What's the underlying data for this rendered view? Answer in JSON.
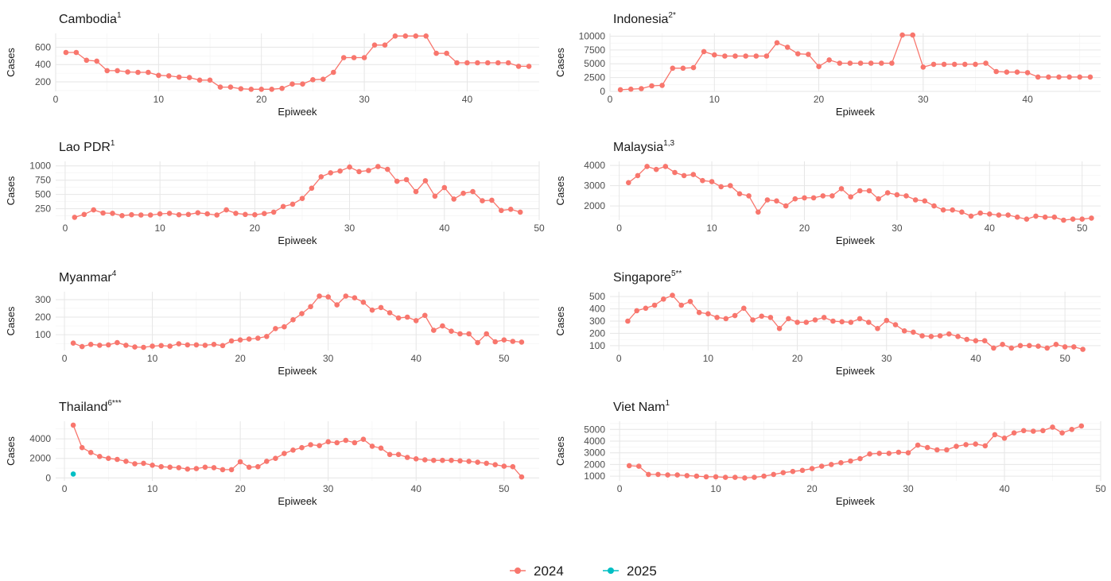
{
  "legend": {
    "items": [
      {
        "label": "2024",
        "color": "#F8766D"
      },
      {
        "label": "2025",
        "color": "#00BFC4"
      }
    ],
    "placement": "bottom"
  },
  "chart_data": [
    {
      "type": "line",
      "title": "Cambodia",
      "title_sup": "1",
      "xlabel": "Epiweek",
      "ylabel": "Cases",
      "xlim": [
        0,
        47
      ],
      "ylim": [
        90,
        760
      ],
      "xticks": [
        0,
        10,
        20,
        30,
        40
      ],
      "yticks": [
        200,
        400,
        600
      ],
      "grid": true,
      "series": [
        {
          "name": "2024",
          "color": "#F8766D",
          "x": [
            1,
            2,
            3,
            4,
            5,
            6,
            7,
            8,
            9,
            10,
            11,
            12,
            13,
            14,
            15,
            16,
            17,
            18,
            19,
            20,
            21,
            22,
            23,
            24,
            25,
            26,
            27,
            28,
            29,
            30,
            31,
            32,
            33,
            34,
            35,
            36,
            37,
            38,
            39,
            40,
            41,
            42,
            43,
            44,
            45,
            46
          ],
          "y": [
            540,
            540,
            450,
            440,
            330,
            330,
            315,
            310,
            310,
            275,
            270,
            255,
            250,
            220,
            220,
            140,
            140,
            120,
            115,
            115,
            115,
            125,
            175,
            175,
            225,
            230,
            310,
            480,
            480,
            480,
            625,
            625,
            730,
            730,
            730,
            730,
            530,
            530,
            420,
            420,
            420,
            420,
            420,
            420,
            380,
            380
          ]
        }
      ]
    },
    {
      "type": "line",
      "title": "Indonesia",
      "title_sup": "2*",
      "xlabel": "Epiweek",
      "ylabel": "Cases",
      "xlim": [
        0,
        47
      ],
      "ylim": [
        0,
        10500
      ],
      "xticks": [
        0,
        10,
        20,
        30,
        40
      ],
      "yticks": [
        0,
        2500,
        5000,
        7500,
        10000
      ],
      "grid": true,
      "series": [
        {
          "name": "2024",
          "color": "#F8766D",
          "x": [
            1,
            2,
            3,
            4,
            5,
            6,
            7,
            8,
            9,
            10,
            11,
            12,
            13,
            14,
            15,
            16,
            17,
            18,
            19,
            20,
            21,
            22,
            23,
            24,
            25,
            26,
            27,
            28,
            29,
            30,
            31,
            32,
            33,
            34,
            35,
            36,
            37,
            38,
            39,
            40,
            41,
            42,
            43,
            44,
            45,
            46
          ],
          "y": [
            300,
            400,
            500,
            1000,
            1100,
            4200,
            4200,
            4300,
            7200,
            6600,
            6400,
            6400,
            6400,
            6400,
            6400,
            8800,
            8000,
            6800,
            6700,
            4500,
            5700,
            5100,
            5100,
            5100,
            5100,
            5100,
            5100,
            10200,
            10200,
            4400,
            4900,
            4900,
            4900,
            4900,
            4900,
            5100,
            3600,
            3500,
            3500,
            3400,
            2600,
            2600,
            2600,
            2600,
            2600,
            2600
          ]
        }
      ]
    },
    {
      "type": "line",
      "title": "Lao PDR",
      "title_sup": "1",
      "xlabel": "Epiweek",
      "ylabel": "Cases",
      "xlim": [
        -1,
        50
      ],
      "ylim": [
        50,
        1080
      ],
      "xticks": [
        0,
        10,
        20,
        30,
        40,
        50
      ],
      "yticks": [
        250,
        500,
        750,
        1000
      ],
      "grid": true,
      "series": [
        {
          "name": "2024",
          "color": "#F8766D",
          "x": [
            1,
            2,
            3,
            4,
            5,
            6,
            7,
            8,
            9,
            10,
            11,
            12,
            13,
            14,
            15,
            16,
            17,
            18,
            19,
            20,
            21,
            22,
            23,
            24,
            25,
            26,
            27,
            28,
            29,
            30,
            31,
            32,
            33,
            34,
            35,
            36,
            37,
            38,
            39,
            40,
            41,
            42,
            43,
            44,
            45,
            46,
            47,
            48
          ],
          "y": [
            100,
            150,
            230,
            175,
            170,
            130,
            145,
            140,
            140,
            160,
            170,
            145,
            150,
            180,
            160,
            140,
            230,
            170,
            150,
            145,
            165,
            190,
            290,
            330,
            430,
            610,
            810,
            880,
            910,
            980,
            900,
            920,
            990,
            940,
            730,
            760,
            550,
            740,
            470,
            620,
            420,
            520,
            550,
            390,
            400,
            220,
            240,
            190
          ]
        }
      ]
    },
    {
      "type": "line",
      "title": "Malaysia",
      "title_sup": "1,3",
      "xlabel": "Epiweek",
      "ylabel": "Cases",
      "xlim": [
        -1,
        52
      ],
      "ylim": [
        1300,
        4200
      ],
      "xticks": [
        0,
        10,
        20,
        30,
        40,
        50
      ],
      "yticks": [
        2000,
        3000,
        4000
      ],
      "grid": true,
      "series": [
        {
          "name": "2024",
          "color": "#F8766D",
          "x": [
            1,
            2,
            3,
            4,
            5,
            6,
            7,
            8,
            9,
            10,
            11,
            12,
            13,
            14,
            15,
            16,
            17,
            18,
            19,
            20,
            21,
            22,
            23,
            24,
            25,
            26,
            27,
            28,
            29,
            30,
            31,
            32,
            33,
            34,
            35,
            36,
            37,
            38,
            39,
            40,
            41,
            42,
            43,
            44,
            45,
            46,
            47,
            48,
            49,
            50,
            51
          ],
          "y": [
            3150,
            3500,
            3950,
            3800,
            3950,
            3650,
            3500,
            3550,
            3250,
            3200,
            2950,
            3000,
            2600,
            2500,
            1700,
            2300,
            2250,
            2000,
            2350,
            2400,
            2400,
            2500,
            2500,
            2850,
            2450,
            2750,
            2750,
            2350,
            2650,
            2550,
            2500,
            2300,
            2250,
            2000,
            1800,
            1800,
            1700,
            1500,
            1650,
            1600,
            1550,
            1550,
            1450,
            1350,
            1500,
            1450,
            1450,
            1300,
            1350,
            1350,
            1400
          ]
        }
      ]
    },
    {
      "type": "line",
      "title": "Myanmar",
      "title_sup": "4",
      "xlabel": "Epiweek",
      "ylabel": "Cases",
      "xlim": [
        -1,
        54
      ],
      "ylim": [
        10,
        345
      ],
      "xticks": [
        0,
        10,
        20,
        30,
        40,
        50
      ],
      "yticks": [
        100,
        200,
        300
      ],
      "grid": true,
      "series": [
        {
          "name": "2024",
          "color": "#F8766D",
          "x": [
            1,
            2,
            3,
            4,
            5,
            6,
            7,
            8,
            9,
            10,
            11,
            12,
            13,
            14,
            15,
            16,
            17,
            18,
            19,
            20,
            21,
            22,
            23,
            24,
            25,
            26,
            27,
            28,
            29,
            30,
            31,
            32,
            33,
            34,
            35,
            36,
            37,
            38,
            39,
            40,
            41,
            42,
            43,
            44,
            45,
            46,
            47,
            48,
            49,
            50,
            51,
            52
          ],
          "y": [
            52,
            32,
            45,
            40,
            42,
            55,
            40,
            30,
            28,
            35,
            38,
            35,
            48,
            42,
            42,
            40,
            45,
            38,
            65,
            70,
            75,
            80,
            90,
            135,
            145,
            185,
            220,
            260,
            320,
            315,
            270,
            320,
            310,
            285,
            240,
            255,
            225,
            195,
            200,
            180,
            210,
            125,
            150,
            120,
            105,
            105,
            55,
            105,
            60,
            70,
            62,
            58
          ]
        }
      ]
    },
    {
      "type": "line",
      "title": "Singapore",
      "title_sup": "5**",
      "xlabel": "Epiweek",
      "ylabel": "Cases",
      "xlim": [
        -1,
        54
      ],
      "ylim": [
        60,
        540
      ],
      "xticks": [
        0,
        10,
        20,
        30,
        40,
        50
      ],
      "yticks": [
        100,
        200,
        300,
        400,
        500
      ],
      "grid": true,
      "series": [
        {
          "name": "2024",
          "color": "#F8766D",
          "x": [
            1,
            2,
            3,
            4,
            5,
            6,
            7,
            8,
            9,
            10,
            11,
            12,
            13,
            14,
            15,
            16,
            17,
            18,
            19,
            20,
            21,
            22,
            23,
            24,
            25,
            26,
            27,
            28,
            29,
            30,
            31,
            32,
            33,
            34,
            35,
            36,
            37,
            38,
            39,
            40,
            41,
            42,
            43,
            44,
            45,
            46,
            47,
            48,
            49,
            50,
            51,
            52
          ],
          "y": [
            300,
            385,
            405,
            430,
            480,
            510,
            430,
            460,
            370,
            360,
            330,
            320,
            345,
            405,
            310,
            340,
            330,
            240,
            320,
            290,
            290,
            310,
            330,
            300,
            295,
            290,
            320,
            290,
            240,
            305,
            270,
            220,
            210,
            180,
            175,
            180,
            195,
            175,
            150,
            140,
            140,
            80,
            110,
            80,
            100,
            100,
            95,
            80,
            110,
            90,
            90,
            70
          ]
        }
      ]
    },
    {
      "type": "line",
      "title": "Thailand",
      "title_sup": "6***",
      "xlabel": "Epiweek",
      "ylabel": "Cases",
      "xlim": [
        -1,
        54
      ],
      "ylim": [
        -300,
        5800
      ],
      "xticks": [
        0,
        10,
        20,
        30,
        40,
        50
      ],
      "yticks": [
        0,
        2000,
        4000
      ],
      "grid": true,
      "series": [
        {
          "name": "2024",
          "color": "#F8766D",
          "x": [
            1,
            2,
            3,
            4,
            5,
            6,
            7,
            8,
            9,
            10,
            11,
            12,
            13,
            14,
            15,
            16,
            17,
            18,
            19,
            20,
            21,
            22,
            23,
            24,
            25,
            26,
            27,
            28,
            29,
            30,
            31,
            32,
            33,
            34,
            35,
            36,
            37,
            38,
            39,
            40,
            41,
            42,
            43,
            44,
            45,
            46,
            47,
            48,
            49,
            50,
            51,
            52
          ],
          "y": [
            5400,
            3100,
            2600,
            2200,
            2000,
            1900,
            1700,
            1450,
            1500,
            1300,
            1150,
            1100,
            1050,
            900,
            950,
            1100,
            1050,
            850,
            850,
            1650,
            1100,
            1150,
            1700,
            2000,
            2500,
            2850,
            3100,
            3400,
            3300,
            3700,
            3600,
            3850,
            3600,
            3950,
            3250,
            3050,
            2400,
            2400,
            2100,
            1950,
            1850,
            1800,
            1800,
            1800,
            1750,
            1700,
            1600,
            1500,
            1350,
            1200,
            1150,
            100
          ]
        },
        {
          "name": "2025",
          "color": "#00BFC4",
          "x": [
            1
          ],
          "y": [
            400
          ]
        }
      ]
    },
    {
      "type": "line",
      "title": "Viet Nam",
      "title_sup": "1",
      "xlabel": "Epiweek",
      "ylabel": "Cases",
      "xlim": [
        -1,
        50
      ],
      "ylim": [
        600,
        5700
      ],
      "xticks": [
        0,
        10,
        20,
        30,
        40,
        50
      ],
      "yticks": [
        1000,
        2000,
        3000,
        4000,
        5000
      ],
      "grid": true,
      "series": [
        {
          "name": "2024",
          "color": "#F8766D",
          "x": [
            1,
            2,
            3,
            4,
            5,
            6,
            7,
            8,
            9,
            10,
            11,
            12,
            13,
            14,
            15,
            16,
            17,
            18,
            19,
            20,
            21,
            22,
            23,
            24,
            25,
            26,
            27,
            28,
            29,
            30,
            31,
            32,
            33,
            34,
            35,
            36,
            37,
            38,
            39,
            40,
            41,
            42,
            43,
            44,
            45,
            46,
            47,
            48
          ],
          "y": [
            1900,
            1850,
            1150,
            1150,
            1100,
            1100,
            1050,
            1000,
            950,
            950,
            900,
            900,
            850,
            900,
            1000,
            1150,
            1300,
            1400,
            1500,
            1650,
            1850,
            2000,
            2150,
            2300,
            2500,
            2900,
            2950,
            2950,
            3050,
            3000,
            3650,
            3450,
            3250,
            3250,
            3550,
            3700,
            3750,
            3600,
            4550,
            4250,
            4700,
            4900,
            4850,
            4900,
            5200,
            4700,
            5000,
            5300
          ]
        }
      ]
    }
  ]
}
